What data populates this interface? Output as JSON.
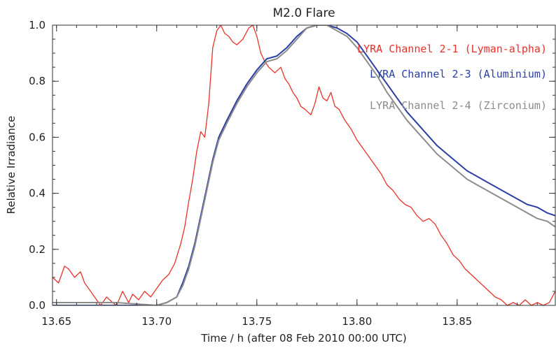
{
  "chart_data": {
    "type": "line",
    "title": "M2.0 Flare",
    "xlabel": "Time / h (after 08 Feb 2010  00:00 UTC)",
    "ylabel": "Relative Irradiance",
    "xlim": [
      13.648,
      13.899
    ],
    "ylim": [
      0.0,
      1.0
    ],
    "xticks": [
      13.65,
      13.7,
      13.75,
      13.8,
      13.85
    ],
    "xtick_labels": [
      "13.65",
      "13.70",
      "13.75",
      "13.80",
      "13.85"
    ],
    "yticks": [
      0.0,
      0.2,
      0.4,
      0.6,
      0.8,
      1.0
    ],
    "ytick_labels": [
      "0.0",
      "0.2",
      "0.4",
      "0.6",
      "0.8",
      "1.0"
    ],
    "grid": false,
    "legend_position": "top-right",
    "series": [
      {
        "name": "LYRA Channel 2-1 (Lyman-alpha)",
        "color": "#e8322a",
        "x": [
          13.648,
          13.651,
          13.654,
          13.656,
          13.659,
          13.662,
          13.664,
          13.667,
          13.67,
          13.672,
          13.675,
          13.678,
          13.68,
          13.683,
          13.686,
          13.688,
          13.691,
          13.694,
          13.697,
          13.7,
          13.703,
          13.706,
          13.709,
          13.712,
          13.714,
          13.716,
          13.718,
          13.72,
          13.722,
          13.724,
          13.726,
          13.728,
          13.73,
          13.732,
          13.734,
          13.736,
          13.738,
          13.74,
          13.743,
          13.746,
          13.748,
          13.75,
          13.752,
          13.754,
          13.756,
          13.759,
          13.762,
          13.764,
          13.766,
          13.768,
          13.77,
          13.772,
          13.774,
          13.777,
          13.779,
          13.781,
          13.783,
          13.785,
          13.787,
          13.789,
          13.791,
          13.794,
          13.797,
          13.8,
          13.803,
          13.806,
          13.809,
          13.812,
          13.815,
          13.818,
          13.821,
          13.824,
          13.827,
          13.83,
          13.833,
          13.836,
          13.839,
          13.842,
          13.845,
          13.848,
          13.851,
          13.854,
          13.857,
          13.86,
          13.863,
          13.866,
          13.869,
          13.872,
          13.875,
          13.878,
          13.881,
          13.884,
          13.887,
          13.89,
          13.893,
          13.896,
          13.899
        ],
        "values": [
          0.1,
          0.08,
          0.14,
          0.13,
          0.1,
          0.12,
          0.08,
          0.05,
          0.02,
          0.0,
          0.03,
          0.01,
          0.0,
          0.05,
          0.01,
          0.04,
          0.02,
          0.05,
          0.03,
          0.06,
          0.09,
          0.11,
          0.15,
          0.22,
          0.28,
          0.37,
          0.45,
          0.55,
          0.62,
          0.6,
          0.72,
          0.92,
          0.98,
          1.0,
          0.97,
          0.96,
          0.94,
          0.93,
          0.95,
          0.99,
          1.0,
          0.96,
          0.9,
          0.87,
          0.85,
          0.83,
          0.85,
          0.81,
          0.79,
          0.76,
          0.74,
          0.71,
          0.7,
          0.68,
          0.72,
          0.78,
          0.74,
          0.73,
          0.76,
          0.71,
          0.7,
          0.66,
          0.63,
          0.59,
          0.56,
          0.53,
          0.5,
          0.47,
          0.43,
          0.41,
          0.38,
          0.36,
          0.35,
          0.32,
          0.3,
          0.31,
          0.29,
          0.25,
          0.22,
          0.18,
          0.16,
          0.13,
          0.11,
          0.09,
          0.07,
          0.05,
          0.03,
          0.02,
          0.0,
          0.01,
          0.0,
          0.02,
          0.0,
          0.01,
          0.0,
          0.01,
          0.05
        ]
      },
      {
        "name": "LYRA Channel 2-3 (Aluminium)",
        "color": "#2b3ea6",
        "x": [
          13.648,
          13.66,
          13.68,
          13.7,
          13.705,
          13.71,
          13.713,
          13.716,
          13.719,
          13.722,
          13.725,
          13.728,
          13.731,
          13.735,
          13.74,
          13.745,
          13.75,
          13.755,
          13.76,
          13.765,
          13.77,
          13.775,
          13.78,
          13.785,
          13.79,
          13.795,
          13.8,
          13.805,
          13.81,
          13.815,
          13.82,
          13.825,
          13.83,
          13.835,
          13.84,
          13.845,
          13.85,
          13.855,
          13.86,
          13.865,
          13.87,
          13.875,
          13.88,
          13.885,
          13.89,
          13.895,
          13.899
        ],
        "values": [
          0.0,
          0.0,
          0.0,
          0.0,
          0.01,
          0.03,
          0.08,
          0.14,
          0.22,
          0.32,
          0.42,
          0.52,
          0.6,
          0.66,
          0.73,
          0.79,
          0.84,
          0.88,
          0.89,
          0.92,
          0.96,
          0.99,
          1.0,
          1.0,
          0.99,
          0.97,
          0.94,
          0.89,
          0.84,
          0.79,
          0.74,
          0.69,
          0.65,
          0.61,
          0.57,
          0.54,
          0.51,
          0.48,
          0.46,
          0.44,
          0.42,
          0.4,
          0.38,
          0.36,
          0.35,
          0.33,
          0.32
        ]
      },
      {
        "name": "LYRA Channel 2-4 (Zirconium)",
        "color": "#8c8c8c",
        "x": [
          13.648,
          13.66,
          13.68,
          13.7,
          13.705,
          13.71,
          13.713,
          13.716,
          13.719,
          13.722,
          13.725,
          13.728,
          13.731,
          13.735,
          13.74,
          13.745,
          13.75,
          13.755,
          13.76,
          13.765,
          13.77,
          13.775,
          13.78,
          13.785,
          13.79,
          13.795,
          13.8,
          13.805,
          13.81,
          13.815,
          13.82,
          13.825,
          13.83,
          13.835,
          13.84,
          13.845,
          13.85,
          13.855,
          13.86,
          13.865,
          13.87,
          13.875,
          13.88,
          13.885,
          13.89,
          13.895,
          13.899
        ],
        "values": [
          0.01,
          0.01,
          0.01,
          0.0,
          0.01,
          0.03,
          0.07,
          0.13,
          0.21,
          0.31,
          0.41,
          0.51,
          0.59,
          0.65,
          0.72,
          0.78,
          0.83,
          0.87,
          0.88,
          0.91,
          0.95,
          0.99,
          1.0,
          1.0,
          0.98,
          0.96,
          0.92,
          0.87,
          0.82,
          0.76,
          0.71,
          0.66,
          0.62,
          0.58,
          0.54,
          0.51,
          0.48,
          0.45,
          0.43,
          0.41,
          0.39,
          0.37,
          0.35,
          0.33,
          0.31,
          0.3,
          0.28
        ]
      }
    ]
  }
}
